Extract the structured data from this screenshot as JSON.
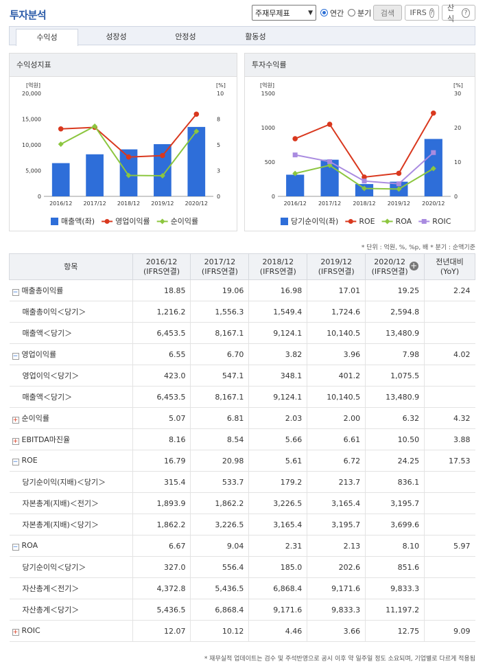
{
  "header": {
    "title": "투자분석",
    "statement_select": "주재무제표",
    "radio_annual": "연간",
    "radio_quarter": "분기",
    "search_label": "검색",
    "ifrs_label": "IFRS",
    "formula_label": "산식"
  },
  "tabs": [
    {
      "label": "수익성",
      "active": true
    },
    {
      "label": "성장성",
      "active": false
    },
    {
      "label": "안정성",
      "active": false
    },
    {
      "label": "활동성",
      "active": false
    }
  ],
  "panels": {
    "left_title": "수익성지표",
    "right_title": "투자수익률"
  },
  "colors": {
    "bar": "#2e6ed9",
    "red": "#d9381e",
    "green": "#8cc63f",
    "purple": "#a98be0"
  },
  "chart_data": [
    {
      "type": "bar+line",
      "title": "수익성지표",
      "categories": [
        "2016/12",
        "2017/12",
        "2018/12",
        "2019/12",
        "2020/12"
      ],
      "y_left_unit": "[억원]",
      "y_right_unit": "[%]",
      "y_left_ticks": [
        "0",
        "5,000",
        "10,000",
        "15,000",
        "20,000"
      ],
      "y_right_ticks": [
        "0",
        "3",
        "5",
        "8",
        "10"
      ],
      "ylim_left": [
        0,
        20000
      ],
      "ylim_right": [
        0,
        10
      ],
      "series": [
        {
          "name": "매출액(좌)",
          "kind": "bar",
          "axis": "left",
          "color": "#2e6ed9",
          "values": [
            6453.5,
            8167.1,
            9124.1,
            10140.5,
            13480.9
          ]
        },
        {
          "name": "영업이익률",
          "kind": "line",
          "axis": "right",
          "color": "#d9381e",
          "values": [
            6.55,
            6.7,
            3.82,
            3.96,
            7.98
          ]
        },
        {
          "name": "순이익률",
          "kind": "line",
          "axis": "right",
          "color": "#8cc63f",
          "values": [
            5.07,
            6.81,
            2.03,
            2.0,
            6.32
          ]
        }
      ]
    },
    {
      "type": "bar+line",
      "title": "투자수익률",
      "categories": [
        "2016/12",
        "2017/12",
        "2018/12",
        "2019/12",
        "2020/12"
      ],
      "y_left_unit": "[억원]",
      "y_right_unit": "[%]",
      "y_left_ticks": [
        "0",
        "500",
        "1000",
        "1500"
      ],
      "y_right_ticks": [
        "0",
        "10",
        "20",
        "30"
      ],
      "ylim_left": [
        0,
        1500
      ],
      "ylim_right": [
        0,
        30
      ],
      "series": [
        {
          "name": "당기순이익(좌)",
          "kind": "bar",
          "axis": "left",
          "color": "#2e6ed9",
          "values": [
            315.4,
            533.7,
            179.2,
            213.7,
            836.1
          ]
        },
        {
          "name": "ROE",
          "kind": "line",
          "axis": "right",
          "color": "#d9381e",
          "values": [
            16.79,
            20.98,
            5.61,
            6.72,
            24.25
          ]
        },
        {
          "name": "ROA",
          "kind": "line",
          "axis": "right",
          "color": "#8cc63f",
          "values": [
            6.67,
            9.04,
            2.31,
            2.13,
            8.1
          ]
        },
        {
          "name": "ROIC",
          "kind": "line",
          "axis": "right",
          "color": "#a98be0",
          "values": [
            12.07,
            10.12,
            4.46,
            3.66,
            12.75
          ]
        }
      ]
    }
  ],
  "unit_note": "* 단위 : 억원, %, %p, 배   * 분기 : 순액기준",
  "table": {
    "headers": [
      "항목",
      "2016/12\n(IFRS연결)",
      "2017/12\n(IFRS연결)",
      "2018/12\n(IFRS연결)",
      "2019/12\n(IFRS연결)",
      "2020/12\n(IFRS연결)",
      "전년대비\n(YoY)"
    ],
    "rows": [
      {
        "label": "매출총이익률",
        "toggle": "minus",
        "group": true,
        "values": [
          "18.85",
          "19.06",
          "16.98",
          "17.01",
          "19.25",
          "2.24"
        ]
      },
      {
        "label": "매출총이익＜당기＞",
        "values": [
          "1,216.2",
          "1,556.3",
          "1,549.4",
          "1,724.6",
          "2,594.8",
          ""
        ]
      },
      {
        "label": "매출액＜당기＞",
        "values": [
          "6,453.5",
          "8,167.1",
          "9,124.1",
          "10,140.5",
          "13,480.9",
          ""
        ]
      },
      {
        "label": "영업이익률",
        "toggle": "minus",
        "group": true,
        "values": [
          "6.55",
          "6.70",
          "3.82",
          "3.96",
          "7.98",
          "4.02"
        ]
      },
      {
        "label": "영업이익＜당기＞",
        "values": [
          "423.0",
          "547.1",
          "348.1",
          "401.2",
          "1,075.5",
          ""
        ]
      },
      {
        "label": "매출액＜당기＞",
        "values": [
          "6,453.5",
          "8,167.1",
          "9,124.1",
          "10,140.5",
          "13,480.9",
          ""
        ]
      },
      {
        "label": "순이익률",
        "toggle": "plus",
        "group": true,
        "values": [
          "5.07",
          "6.81",
          "2.03",
          "2.00",
          "6.32",
          "4.32"
        ]
      },
      {
        "label": "EBITDA마진율",
        "toggle": "plus",
        "group": true,
        "values": [
          "8.16",
          "8.54",
          "5.66",
          "6.61",
          "10.50",
          "3.88"
        ]
      },
      {
        "label": "ROE",
        "toggle": "minus",
        "group": true,
        "values": [
          "16.79",
          "20.98",
          "5.61",
          "6.72",
          "24.25",
          "17.53"
        ]
      },
      {
        "label": "당기순이익(지배)＜당기＞",
        "values": [
          "315.4",
          "533.7",
          "179.2",
          "213.7",
          "836.1",
          ""
        ]
      },
      {
        "label": "자본총계(지배)＜전기＞",
        "values": [
          "1,893.9",
          "1,862.2",
          "3,226.5",
          "3,165.4",
          "3,195.7",
          ""
        ]
      },
      {
        "label": "자본총계(지배)＜당기＞",
        "values": [
          "1,862.2",
          "3,226.5",
          "3,165.4",
          "3,195.7",
          "3,699.6",
          ""
        ]
      },
      {
        "label": "ROA",
        "toggle": "minus",
        "group": true,
        "values": [
          "6.67",
          "9.04",
          "2.31",
          "2.13",
          "8.10",
          "5.97"
        ]
      },
      {
        "label": "당기순이익＜당기＞",
        "values": [
          "327.0",
          "556.4",
          "185.0",
          "202.6",
          "851.6",
          ""
        ]
      },
      {
        "label": "자산총계＜전기＞",
        "values": [
          "4,372.8",
          "5,436.5",
          "6,868.4",
          "9,171.6",
          "9,833.3",
          ""
        ]
      },
      {
        "label": "자산총계＜당기＞",
        "values": [
          "5,436.5",
          "6,868.4",
          "9,171.6",
          "9,833.3",
          "11,197.2",
          ""
        ]
      },
      {
        "label": "ROIC",
        "toggle": "plus",
        "group": true,
        "values": [
          "12.07",
          "10.12",
          "4.46",
          "3.66",
          "12.75",
          "9.09"
        ]
      }
    ]
  },
  "footer_note": "* 재무실적 업데이트는 검수 및 주석반영으로 공시 이후 약 일주일 정도 소요되며, 기업별로 다르게 적용됨"
}
